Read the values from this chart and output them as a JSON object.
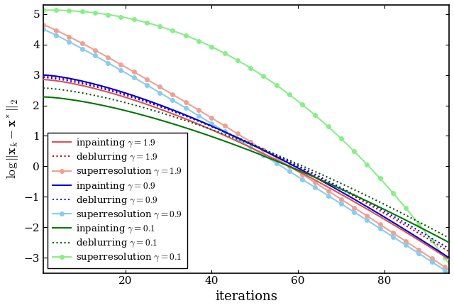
{
  "title": "",
  "xlabel": "iterations",
  "xlim": [
    1,
    95
  ],
  "ylim": [
    -3.5,
    5.3
  ],
  "yticks": [
    -3,
    -2,
    -1,
    0,
    1,
    2,
    3,
    4,
    5
  ],
  "xticks": [
    20,
    40,
    60,
    80
  ],
  "n_iter": 95,
  "background_color": "#ffffff",
  "series": [
    {
      "label": "inpainting $\\gamma = 1.9$",
      "color": "#e05050",
      "linestyle": "solid",
      "marker": null,
      "a": 3.0,
      "b": -0.55,
      "c": 0.0,
      "d": 90.0,
      "steepness": 0.12
    },
    {
      "label": "deblurring $\\gamma = 1.9$",
      "color": "#cc0000",
      "linestyle": "dotted",
      "marker": null,
      "a": 3.0,
      "b": -0.52,
      "c": 0.08,
      "d": 90.0,
      "steepness": 0.12
    },
    {
      "label": "superresolution $\\gamma = 1.9$",
      "color": "#f0a090",
      "linestyle": "solid",
      "marker": "o",
      "a": 3.0,
      "b": -0.62,
      "c": -0.12,
      "d": 90.0,
      "steepness": 0.12
    },
    {
      "label": "inpainting $\\gamma = 0.9$",
      "color": "#0000cc",
      "linestyle": "solid",
      "marker": null,
      "a": 3.05,
      "b": -0.55,
      "c": -0.01,
      "d": 90.0,
      "steepness": 0.115
    },
    {
      "label": "deblurring $\\gamma = 0.9$",
      "color": "#0000ff",
      "linestyle": "dotted",
      "marker": null,
      "a": 2.9,
      "b": -0.51,
      "c": 0.06,
      "d": 90.0,
      "steepness": 0.115
    },
    {
      "label": "superresolution $\\gamma = 0.9$",
      "color": "#88ccee",
      "linestyle": "solid",
      "marker": "o",
      "a": 3.05,
      "b": -0.67,
      "c": -0.2,
      "d": 90.0,
      "steepness": 0.115
    },
    {
      "label": "inpainting $\\gamma = 0.1$",
      "color": "#007700",
      "linestyle": "solid",
      "marker": null,
      "a": 3.0,
      "b": -0.5,
      "c": 0.1,
      "d": 90.0,
      "steepness": 0.115
    },
    {
      "label": "deblurring $\\gamma = 0.1$",
      "color": "#005500",
      "linestyle": "dotted",
      "marker": null,
      "a": 3.0,
      "b": -0.47,
      "c": 0.17,
      "d": 90.0,
      "steepness": 0.115
    },
    {
      "label": "superresolution $\\gamma = 0.1$",
      "color": "#88ee88",
      "linestyle": "solid",
      "marker": "o",
      "a": 5.13,
      "b": -0.2,
      "c": 0.0,
      "d": 92.0,
      "steepness": 0.055
    }
  ]
}
